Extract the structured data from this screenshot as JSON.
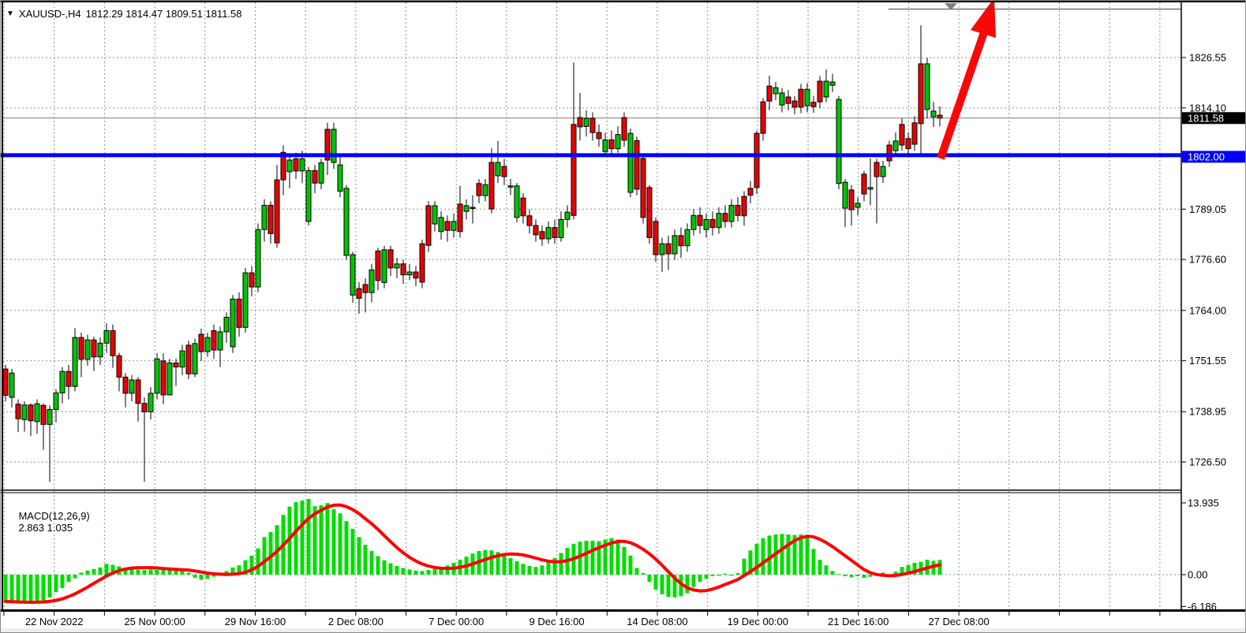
{
  "window": {
    "symbol": "XAUUSD-,H4",
    "ohlc_text": "1812.29 1814.47 1809.51 1811.58",
    "dropdown_icon": "▼"
  },
  "badges": {
    "current_price": "1811.58",
    "level_price": "1802.00"
  },
  "indicator_label": {
    "name": "MACD(12,26,9)",
    "values": "2.863 1.035"
  },
  "colors": {
    "bull": "#00C400",
    "bear": "#E80202",
    "wick": "#000000",
    "grid": "#8795A5",
    "level_line": "#0000FE",
    "arrow": "#F80808",
    "macd_bar": "#00DD00",
    "macd_signal": "#FF0000",
    "current_price_line": "#7A7A7A",
    "badge_black_bg": "#000000",
    "badge_blue_bg": "#0000FE",
    "badge_text": "#FFFFFF",
    "axis_text": "#000000",
    "shift_marker": "#808080"
  },
  "chart_data": {
    "type": "candlestick+macd",
    "title": "XAUUSD-,H4  1812.29 1814.47 1809.51 1811.58",
    "symbol": "XAUUSD-",
    "timeframe": "H4",
    "last_ohlc": {
      "open": 1812.29,
      "high": 1814.47,
      "low": 1809.51,
      "close": 1811.58
    },
    "current_price": 1811.58,
    "horizontal_level": 1802.0,
    "price_axis_ticks": [
      1826.55,
      1814.1,
      1802.0,
      1789.05,
      1776.6,
      1764.0,
      1751.55,
      1738.95,
      1726.5
    ],
    "macd_axis_ticks": [
      13.935,
      0.0,
      -6.186
    ],
    "time_axis_labels": [
      "22 Nov 2022",
      "25 Nov 00:00",
      "29 Nov 16:00",
      "2 Dec 08:00",
      "7 Dec 00:00",
      "9 Dec 16:00",
      "14 Dec 08:00",
      "19 Dec 00:00",
      "21 Dec 16:00",
      "27 Dec 08:00"
    ],
    "grid": true,
    "legend_position": "none",
    "annotations": {
      "arrow": "large red up arrow from the 1802.00 level line toward top-right",
      "level_line": "thick blue horizontal line at 1802.00",
      "shift_marker": "small gray down triangle at chart top"
    },
    "candles": [
      [
        1749.5,
        1750.5,
        1741.5,
        1743.0
      ],
      [
        1742.5,
        1749.5,
        1740.0,
        1748.5
      ],
      [
        1740.8,
        1742.0,
        1733.9,
        1737.2
      ],
      [
        1737.0,
        1741.5,
        1734.0,
        1740.6
      ],
      [
        1740.6,
        1741.0,
        1732.9,
        1736.7
      ],
      [
        1736.5,
        1742.0,
        1733.5,
        1740.9
      ],
      [
        1740.5,
        1741.0,
        1729.5,
        1735.8
      ],
      [
        1735.8,
        1740.5,
        1721.6,
        1739.5
      ],
      [
        1739.5,
        1744.5,
        1736.3,
        1743.6
      ],
      [
        1743.6,
        1750.0,
        1741.0,
        1748.9
      ],
      [
        1748.9,
        1750.5,
        1742.0,
        1745.2
      ],
      [
        1745.2,
        1759.6,
        1744.0,
        1757.3
      ],
      [
        1757.3,
        1758.5,
        1747.5,
        1751.9
      ],
      [
        1751.9,
        1758.0,
        1750.3,
        1756.7
      ],
      [
        1756.7,
        1757.5,
        1749.0,
        1752.5
      ],
      [
        1752.5,
        1757.3,
        1750.5,
        1755.9
      ],
      [
        1755.9,
        1760.8,
        1753.5,
        1759.0
      ],
      [
        1759.0,
        1760.5,
        1749.8,
        1752.8
      ],
      [
        1752.8,
        1753.5,
        1744.0,
        1747.5
      ],
      [
        1747.5,
        1748.5,
        1740.0,
        1743.5
      ],
      [
        1743.5,
        1748.0,
        1741.5,
        1746.8
      ],
      [
        1746.8,
        1747.5,
        1736.5,
        1741.0
      ],
      [
        1741.0,
        1742.5,
        1721.6,
        1738.9
      ],
      [
        1738.9,
        1745.0,
        1737.0,
        1743.5
      ],
      [
        1743.5,
        1753.4,
        1742.0,
        1752.0
      ],
      [
        1751.5,
        1753.4,
        1740.8,
        1743.1
      ],
      [
        1743.1,
        1752.0,
        1746.5,
        1751.0
      ],
      [
        1751.0,
        1752.0,
        1745.3,
        1750.0
      ],
      [
        1750.0,
        1755.5,
        1748.0,
        1754.0
      ],
      [
        1755.4,
        1756.5,
        1747.0,
        1748.3
      ],
      [
        1748.3,
        1757.0,
        1747.5,
        1755.8
      ],
      [
        1758.1,
        1759.5,
        1751.5,
        1753.8
      ],
      [
        1753.8,
        1758.5,
        1752.5,
        1757.3
      ],
      [
        1759.0,
        1760.5,
        1752.0,
        1754.2
      ],
      [
        1754.2,
        1760.0,
        1750.0,
        1758.7
      ],
      [
        1758.7,
        1763.5,
        1756.0,
        1762.3
      ],
      [
        1755.0,
        1767.8,
        1753.5,
        1766.8
      ],
      [
        1766.8,
        1768.5,
        1757.5,
        1759.8
      ],
      [
        1759.8,
        1774.5,
        1758.5,
        1773.3
      ],
      [
        1773.3,
        1775.0,
        1767.5,
        1769.8
      ],
      [
        1769.8,
        1785.5,
        1768.5,
        1784.0
      ],
      [
        1784.0,
        1791.5,
        1781.0,
        1790.0
      ],
      [
        1790.0,
        1791.0,
        1780.5,
        1783.0
      ],
      [
        1796.3,
        1800.0,
        1779.5,
        1780.7
      ],
      [
        1803.1,
        1804.9,
        1792.5,
        1796.3
      ],
      [
        1798.3,
        1802.5,
        1794.2,
        1801.2
      ],
      [
        1801.5,
        1803.0,
        1796.5,
        1798.5
      ],
      [
        1798.5,
        1803.5,
        1795.5,
        1801.5
      ],
      [
        1786.0,
        1799.5,
        1785.0,
        1798.6
      ],
      [
        1798.6,
        1800.0,
        1793.0,
        1795.5
      ],
      [
        1795.5,
        1801.5,
        1794.0,
        1800.5
      ],
      [
        1808.8,
        1810.4,
        1797.5,
        1801.2
      ],
      [
        1800.6,
        1810.4,
        1799.0,
        1808.8
      ],
      [
        1793.5,
        1802.0,
        1792.0,
        1800.0
      ],
      [
        1777.6,
        1795.0,
        1776.5,
        1794.2
      ],
      [
        1767.8,
        1778.5,
        1765.9,
        1777.8
      ],
      [
        1769.4,
        1771.0,
        1763.2,
        1767.0
      ],
      [
        1770.4,
        1772.0,
        1763.5,
        1768.4
      ],
      [
        1768.4,
        1775.5,
        1766.0,
        1774.0
      ],
      [
        1778.7,
        1779.5,
        1769.0,
        1771.4
      ],
      [
        1770.9,
        1780.0,
        1769.5,
        1779.0
      ],
      [
        1779.0,
        1780.0,
        1772.5,
        1774.5
      ],
      [
        1774.5,
        1777.0,
        1772.0,
        1775.5
      ],
      [
        1775.5,
        1776.5,
        1770.5,
        1772.8
      ],
      [
        1772.8,
        1775.5,
        1771.5,
        1773.5
      ],
      [
        1773.5,
        1775.0,
        1770.0,
        1772.0
      ],
      [
        1780.5,
        1781.5,
        1769.5,
        1771.0
      ],
      [
        1789.9,
        1791.0,
        1778.5,
        1780.1
      ],
      [
        1785.4,
        1791.0,
        1783.5,
        1789.9
      ],
      [
        1783.5,
        1788.5,
        1781.5,
        1787.0
      ],
      [
        1786.0,
        1787.5,
        1781.0,
        1783.8
      ],
      [
        1783.8,
        1788.0,
        1782.0,
        1786.0
      ],
      [
        1790.3,
        1794.8,
        1782.0,
        1783.5
      ],
      [
        1788.5,
        1791.5,
        1786.5,
        1789.9
      ],
      [
        1789.5,
        1792.5,
        1785.5,
        1789.2
      ],
      [
        1795.4,
        1796.5,
        1790.5,
        1792.4
      ],
      [
        1792.4,
        1796.5,
        1791.0,
        1795.1
      ],
      [
        1800.6,
        1804.1,
        1788.0,
        1789.1
      ],
      [
        1797.3,
        1805.9,
        1795.5,
        1800.6
      ],
      [
        1799.6,
        1801.5,
        1795.0,
        1797.1
      ],
      [
        1794.5,
        1796.5,
        1792.5,
        1794.8
      ],
      [
        1787.0,
        1795.5,
        1785.8,
        1794.8
      ],
      [
        1791.8,
        1793.0,
        1785.5,
        1787.4
      ],
      [
        1787.4,
        1789.0,
        1783.0,
        1785.0
      ],
      [
        1785.0,
        1786.5,
        1781.0,
        1782.7
      ],
      [
        1783.5,
        1785.0,
        1780.0,
        1781.7
      ],
      [
        1781.7,
        1786.0,
        1780.5,
        1784.5
      ],
      [
        1784.5,
        1786.5,
        1780.5,
        1782.0
      ],
      [
        1782.0,
        1788.5,
        1781.0,
        1786.5
      ],
      [
        1786.5,
        1790.0,
        1784.5,
        1788.3
      ],
      [
        1810.0,
        1825.3,
        1786.5,
        1787.5
      ],
      [
        1811.7,
        1817.8,
        1806.0,
        1809.4
      ],
      [
        1809.5,
        1813.5,
        1807.0,
        1811.5
      ],
      [
        1811.5,
        1813.0,
        1806.0,
        1808.0
      ],
      [
        1808.0,
        1810.0,
        1804.5,
        1806.5
      ],
      [
        1803.3,
        1808.0,
        1802.5,
        1806.2
      ],
      [
        1806.2,
        1808.5,
        1802.0,
        1804.0
      ],
      [
        1804.0,
        1809.5,
        1803.0,
        1807.5
      ],
      [
        1811.7,
        1813.0,
        1804.5,
        1806.1
      ],
      [
        1793.2,
        1809.0,
        1792.0,
        1807.8
      ],
      [
        1806.0,
        1807.0,
        1792.5,
        1794.0
      ],
      [
        1801.6,
        1802.5,
        1785.5,
        1787.0
      ],
      [
        1794.4,
        1795.0,
        1780.5,
        1782.0
      ],
      [
        1786.0,
        1787.0,
        1776.0,
        1777.8
      ],
      [
        1777.8,
        1782.0,
        1773.5,
        1780.5
      ],
      [
        1780.5,
        1782.5,
        1774.0,
        1778.0
      ],
      [
        1778.0,
        1784.0,
        1776.5,
        1782.5
      ],
      [
        1782.5,
        1784.5,
        1777.0,
        1780.0
      ],
      [
        1780.0,
        1785.5,
        1778.5,
        1784.0
      ],
      [
        1784.0,
        1789.0,
        1782.5,
        1787.5
      ],
      [
        1787.5,
        1789.5,
        1783.0,
        1785.0
      ],
      [
        1784.0,
        1788.0,
        1782.0,
        1786.5
      ],
      [
        1786.5,
        1788.5,
        1782.5,
        1784.5
      ],
      [
        1784.5,
        1789.5,
        1783.0,
        1788.0
      ],
      [
        1788.0,
        1790.0,
        1784.5,
        1786.0
      ],
      [
        1786.0,
        1791.5,
        1784.5,
        1790.0
      ],
      [
        1790.0,
        1792.0,
        1786.0,
        1787.5
      ],
      [
        1792.2,
        1793.5,
        1785.0,
        1787.4
      ],
      [
        1794.2,
        1796.0,
        1790.5,
        1792.5
      ],
      [
        1807.8,
        1808.5,
        1792.8,
        1794.4
      ],
      [
        1815.6,
        1816.5,
        1806.0,
        1807.8
      ],
      [
        1819.5,
        1822.1,
        1813.5,
        1815.8
      ],
      [
        1817.6,
        1820.5,
        1816.0,
        1819.1
      ],
      [
        1814.8,
        1819.0,
        1813.0,
        1817.8
      ],
      [
        1816.8,
        1818.5,
        1813.5,
        1815.2
      ],
      [
        1815.8,
        1817.0,
        1812.5,
        1814.3
      ],
      [
        1818.7,
        1820.0,
        1812.8,
        1814.3
      ],
      [
        1814.6,
        1820.2,
        1813.0,
        1818.7
      ],
      [
        1815.5,
        1817.0,
        1812.9,
        1814.4
      ],
      [
        1820.7,
        1822.0,
        1814.0,
        1815.6
      ],
      [
        1816.8,
        1823.6,
        1815.5,
        1820.7
      ],
      [
        1819.7,
        1822.5,
        1818.0,
        1820.5
      ],
      [
        1795.4,
        1817.0,
        1794.0,
        1816.2
      ],
      [
        1789.3,
        1796.5,
        1784.6,
        1795.7
      ],
      [
        1793.8,
        1795.0,
        1785.0,
        1788.9
      ],
      [
        1789.5,
        1792.0,
        1787.5,
        1790.5
      ],
      [
        1797.7,
        1798.5,
        1791.0,
        1792.8
      ],
      [
        1794.0,
        1801.6,
        1790.0,
        1794.4
      ],
      [
        1800.6,
        1801.5,
        1785.5,
        1797.1
      ],
      [
        1797.1,
        1801.0,
        1795.5,
        1799.6
      ],
      [
        1804.9,
        1806.0,
        1799.5,
        1801.0
      ],
      [
        1803.5,
        1808.0,
        1802.0,
        1805.9
      ],
      [
        1810.0,
        1811.5,
        1803.5,
        1804.9
      ],
      [
        1806.5,
        1808.0,
        1802.5,
        1804.0
      ],
      [
        1810.4,
        1812.0,
        1803.5,
        1805.1
      ],
      [
        1825.0,
        1834.5,
        1802.2,
        1810.2
      ],
      [
        1813.7,
        1826.5,
        1811.5,
        1825.0
      ],
      [
        1811.9,
        1815.6,
        1809.4,
        1813.3
      ],
      [
        1812.29,
        1814.47,
        1809.51,
        1811.58
      ]
    ],
    "macd": {
      "params": [
        12,
        26,
        9
      ],
      "main_last": 2.863,
      "signal_last": 1.035,
      "histogram": [
        -5.2,
        -5.3,
        -5.4,
        -5.45,
        -5.4,
        -5.3,
        -5.0,
        -4.4,
        -3.4,
        -2.6,
        -1.4,
        -0.7,
        0.4,
        0.8,
        1.1,
        1.4,
        2.1,
        1.9,
        1.6,
        1.3,
        1.0,
        1.0,
        0.9,
        1.0,
        0.9,
        1.0,
        1.2,
        0.9,
        0.8,
        0.4,
        -0.6,
        -1.0,
        -0.8,
        -0.4,
        0.3,
        0.7,
        1.4,
        1.8,
        2.8,
        3.7,
        5.1,
        7.3,
        8.3,
        9.6,
        11.6,
        13.2,
        14.1,
        14.4,
        14.7,
        13.3,
        13.5,
        13.9,
        12.7,
        11.9,
        10.4,
        8.9,
        7.3,
        5.8,
        4.6,
        3.6,
        2.8,
        2.2,
        1.7,
        1.3,
        1.0,
        0.8,
        0.7,
        0.9,
        1.1,
        1.4,
        1.8,
        2.3,
        2.9,
        3.5,
        4.1,
        4.6,
        4.8,
        4.7,
        4.4,
        3.9,
        3.2,
        2.6,
        2.1,
        1.7,
        1.5,
        1.8,
        2.4,
        3.2,
        4.2,
        5.2,
        6.0,
        6.4,
        6.6,
        6.6,
        6.5,
        6.8,
        7.1,
        6.8,
        5.4,
        3.7,
        1.3,
        0.3,
        -1.4,
        -2.9,
        -3.8,
        -4.3,
        -4.4,
        -4.2,
        -3.6,
        -2.4,
        -1.4,
        -0.8,
        -0.3,
        -0.2,
        0.2,
        -0.2,
        0.3,
        3.1,
        4.7,
        6.0,
        7.1,
        7.6,
        7.8,
        7.9,
        7.8,
        7.7,
        7.8,
        7.4,
        5.0,
        2.9,
        1.8,
        0.7,
        0.1,
        -0.3,
        -0.5,
        -0.3,
        -0.6,
        -0.4,
        -0.2,
        0.4,
        -0.1,
        0.6,
        1.5,
        1.9,
        2.3,
        2.5,
        2.9,
        2.7,
        2.863
      ]
    }
  }
}
